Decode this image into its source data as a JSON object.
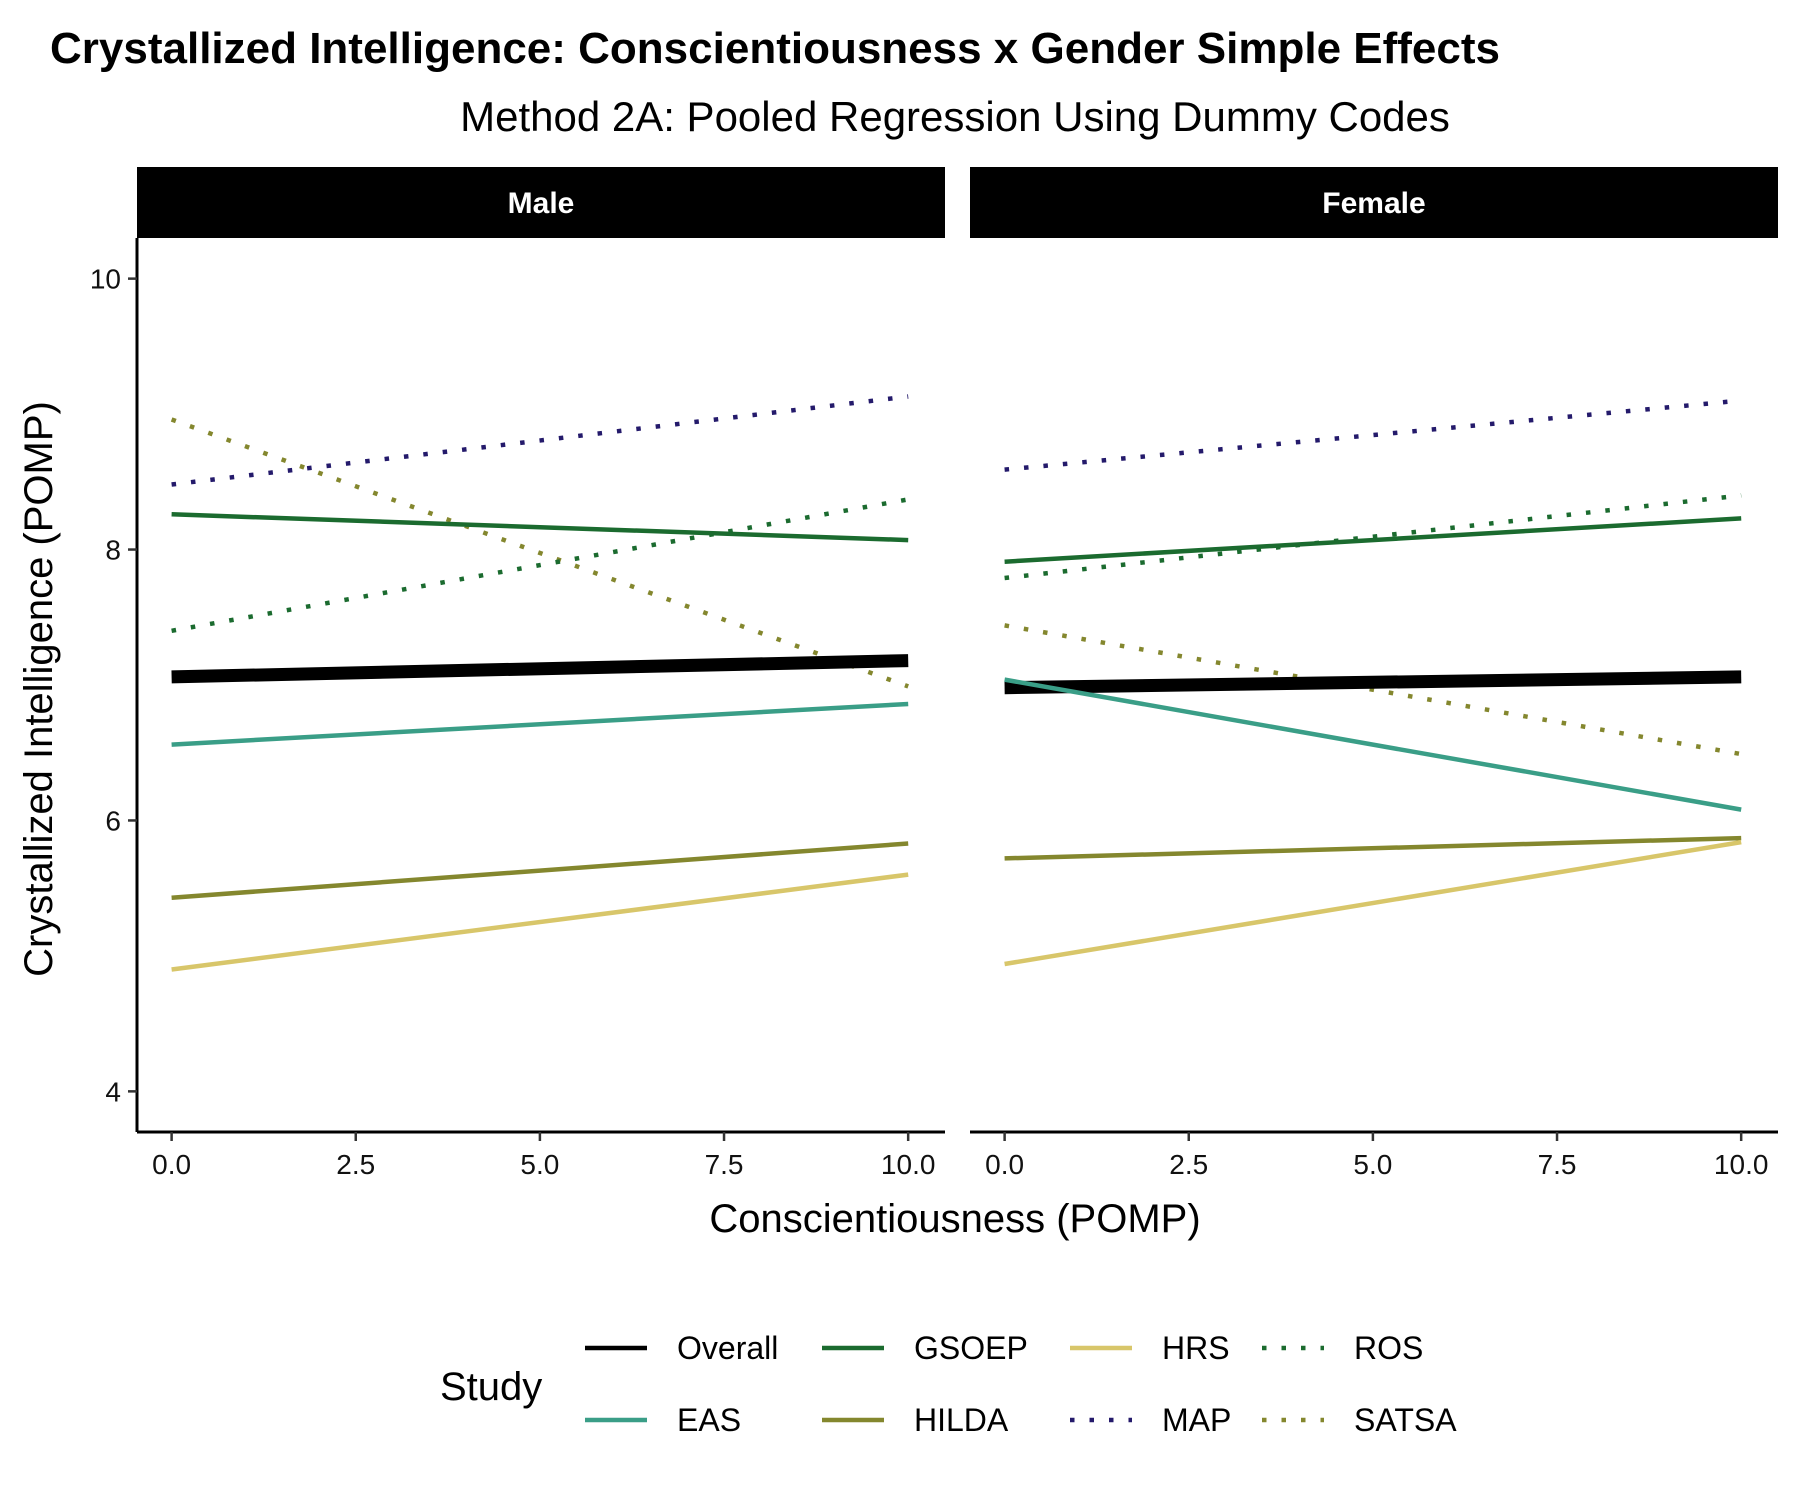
{
  "chart_data": {
    "type": "line",
    "title": "Crystallized Intelligence: Conscientiousness x Gender Simple Effects",
    "subtitle": "Method 2A: Pooled Regression Using Dummy Codes",
    "xlabel": "Conscientiousness (POMP)",
    "ylabel": "Crystallized Intelligence (POMP)",
    "xlim": [
      -0.47,
      10.5
    ],
    "ylim": [
      3.7,
      10.3
    ],
    "x_ticks": [
      "0.0",
      "2.5",
      "5.0",
      "7.5",
      "10.0"
    ],
    "y_ticks": [
      "4",
      "6",
      "8",
      "10"
    ],
    "grid": false,
    "legend_title": "Study",
    "legend_position": "bottom",
    "styles": {
      "Overall": {
        "color": "#000000",
        "dash": "solid",
        "width": 13
      },
      "EAS": {
        "color": "#3a9e87",
        "dash": "solid",
        "width": 4.5
      },
      "GSOEP": {
        "color": "#1b6b2f",
        "dash": "solid",
        "width": 4.5
      },
      "HILDA": {
        "color": "#84872e",
        "dash": "solid",
        "width": 4.5
      },
      "HRS": {
        "color": "#d8c66a",
        "dash": "solid",
        "width": 4.5
      },
      "MAP": {
        "color": "#241a6b",
        "dash": "dotted",
        "width": 4.5
      },
      "ROS": {
        "color": "#1b6b2f",
        "dash": "dotted",
        "width": 4.5
      },
      "SATSA": {
        "color": "#84872e",
        "dash": "dotted",
        "width": 4.5
      }
    },
    "legend": [
      "Overall",
      "GSOEP",
      "HRS",
      "ROS",
      "EAS",
      "HILDA",
      "MAP",
      "SATSA"
    ],
    "panels": [
      {
        "name": "Male",
        "series": [
          {
            "name": "MAP",
            "x": [
              0,
              10
            ],
            "y": [
              8.48,
              9.13
            ]
          },
          {
            "name": "SATSA",
            "x": [
              0,
              10
            ],
            "y": [
              8.96,
              6.99
            ]
          },
          {
            "name": "ROS",
            "x": [
              0,
              10
            ],
            "y": [
              7.4,
              8.37
            ]
          },
          {
            "name": "GSOEP",
            "x": [
              0,
              10
            ],
            "y": [
              8.26,
              8.07
            ]
          },
          {
            "name": "Overall",
            "x": [
              0,
              10
            ],
            "y": [
              7.06,
              7.18
            ]
          },
          {
            "name": "EAS",
            "x": [
              0,
              10
            ],
            "y": [
              6.56,
              6.86
            ]
          },
          {
            "name": "HILDA",
            "x": [
              0,
              10
            ],
            "y": [
              5.43,
              5.83
            ]
          },
          {
            "name": "HRS",
            "x": [
              0,
              10
            ],
            "y": [
              4.9,
              5.6
            ]
          }
        ]
      },
      {
        "name": "Female",
        "series": [
          {
            "name": "MAP",
            "x": [
              0,
              10
            ],
            "y": [
              8.59,
              9.1
            ]
          },
          {
            "name": "ROS",
            "x": [
              0,
              10
            ],
            "y": [
              7.79,
              8.4
            ]
          },
          {
            "name": "GSOEP",
            "x": [
              0,
              10
            ],
            "y": [
              7.91,
              8.23
            ]
          },
          {
            "name": "SATSA",
            "x": [
              0,
              10
            ],
            "y": [
              7.44,
              6.49
            ]
          },
          {
            "name": "Overall",
            "x": [
              0,
              10
            ],
            "y": [
              6.98,
              7.06
            ]
          },
          {
            "name": "EAS",
            "x": [
              0,
              10
            ],
            "y": [
              7.04,
              6.08
            ]
          },
          {
            "name": "HILDA",
            "x": [
              0,
              10
            ],
            "y": [
              5.72,
              5.87
            ]
          },
          {
            "name": "HRS",
            "x": [
              0,
              10
            ],
            "y": [
              4.94,
              5.84
            ]
          }
        ]
      }
    ]
  }
}
